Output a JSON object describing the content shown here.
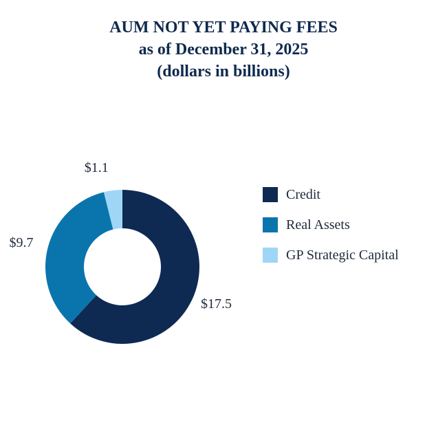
{
  "chart_data": {
    "type": "pie",
    "variant": "donut",
    "title": "AUM NOT YET PAYING FEES",
    "subtitle": "as of December 31, 2025",
    "units_note": "(dollars in billions)",
    "categories": [
      "Credit",
      "Real Assets",
      "GP Strategic Capital"
    ],
    "values": [
      17.5,
      9.7,
      1.1
    ],
    "data_labels": [
      "$17.5",
      "$9.7",
      "$1.1"
    ],
    "colors": [
      "#0f2a52",
      "#0a75ad",
      "#9fd6f7"
    ],
    "legend_position": "right",
    "start_angle": "top",
    "direction": "clockwise"
  }
}
